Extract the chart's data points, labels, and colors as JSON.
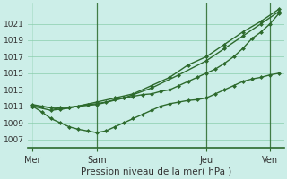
{
  "title": "Pression niveau de la mer( hPa )",
  "bg_color": "#cceee8",
  "grid_color": "#88ccaa",
  "line_color": "#2d6a2d",
  "xtick_labels": [
    "Mer",
    "Sam",
    "Jeu",
    "Ven"
  ],
  "xtick_positions": [
    0,
    7,
    19,
    26
  ],
  "ylim": [
    1006.0,
    1023.5
  ],
  "yticks": [
    1007,
    1009,
    1011,
    1013,
    1015,
    1017,
    1019,
    1021
  ],
  "lines": [
    {
      "x": [
        0,
        1,
        2,
        3,
        4,
        5,
        6,
        7,
        8,
        9,
        10,
        11,
        12,
        13,
        14,
        15,
        16,
        17,
        18,
        19,
        20,
        21,
        22,
        23,
        24,
        25,
        26,
        27
      ],
      "y": [
        1011.2,
        1011.0,
        1010.8,
        1010.6,
        1010.8,
        1011.0,
        1011.2,
        1011.3,
        1011.5,
        1011.8,
        1012.0,
        1012.2,
        1012.4,
        1012.5,
        1012.8,
        1013.0,
        1013.5,
        1014.0,
        1014.5,
        1015.0,
        1015.5,
        1016.2,
        1017.0,
        1018.0,
        1019.2,
        1020.0,
        1021.0,
        1022.3
      ],
      "marker": "D",
      "markersize": 2.0,
      "linewidth": 1.0
    },
    {
      "x": [
        0,
        2,
        4,
        7,
        9,
        11,
        13,
        15,
        17,
        19,
        21,
        23,
        25,
        27
      ],
      "y": [
        1011.0,
        1010.5,
        1010.8,
        1011.5,
        1012.0,
        1012.5,
        1013.5,
        1014.5,
        1016.0,
        1017.0,
        1018.5,
        1020.0,
        1021.3,
        1022.8
      ],
      "marker": "D",
      "markersize": 2.0,
      "linewidth": 1.0
    },
    {
      "x": [
        0,
        3,
        7,
        10,
        13,
        16,
        19,
        21,
        23,
        25,
        27
      ],
      "y": [
        1011.0,
        1010.8,
        1011.2,
        1012.0,
        1013.2,
        1014.8,
        1016.5,
        1018.0,
        1019.5,
        1021.0,
        1022.5
      ],
      "marker": "D",
      "markersize": 2.0,
      "linewidth": 1.0
    },
    {
      "x": [
        0,
        1,
        2,
        3,
        4,
        5,
        6,
        7,
        8,
        9,
        10,
        11,
        12,
        13,
        14,
        15,
        16,
        17,
        18,
        19,
        20,
        21,
        22,
        23,
        24,
        25,
        26,
        27
      ],
      "y": [
        1011.0,
        1010.3,
        1009.5,
        1009.0,
        1008.5,
        1008.2,
        1008.0,
        1007.8,
        1008.0,
        1008.5,
        1009.0,
        1009.5,
        1010.0,
        1010.5,
        1011.0,
        1011.3,
        1011.5,
        1011.7,
        1011.8,
        1012.0,
        1012.5,
        1013.0,
        1013.5,
        1014.0,
        1014.3,
        1014.5,
        1014.8,
        1015.0
      ],
      "marker": "D",
      "markersize": 2.0,
      "linewidth": 1.0
    }
  ],
  "vlines_x": [
    7,
    19,
    26
  ],
  "figsize": [
    3.2,
    2.0
  ],
  "dpi": 100
}
